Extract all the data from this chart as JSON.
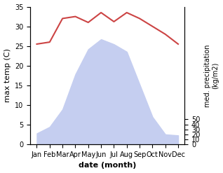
{
  "months": [
    "Jan",
    "Feb",
    "Mar",
    "Apr",
    "May",
    "Jun",
    "Jul",
    "Aug",
    "Sep",
    "Oct",
    "Nov",
    "Dec"
  ],
  "temperature": [
    25.5,
    26.0,
    32.0,
    32.5,
    31.0,
    33.5,
    31.2,
    33.5,
    32.0,
    30.0,
    28.0,
    25.5
  ],
  "precipitation": [
    22,
    35,
    70,
    140,
    190,
    210,
    200,
    185,
    120,
    55,
    20,
    18
  ],
  "temp_color": "#cc4444",
  "precip_fill_color": "#c5cef0",
  "xlabel": "date (month)",
  "ylabel_left": "max temp (C)",
  "ylabel_right": "med. precipitation\n(kg/m2)",
  "ylim_left": [
    0,
    35
  ],
  "ylim_right": [
    0,
    275
  ],
  "yticks_left": [
    0,
    5,
    10,
    15,
    20,
    25,
    30,
    35
  ],
  "yticks_right": [
    0,
    10,
    20,
    30,
    40,
    50
  ],
  "ytick_right_labels": [
    "0",
    "10",
    "20",
    "30",
    "40",
    "50"
  ],
  "bg_color": "#ffffff"
}
